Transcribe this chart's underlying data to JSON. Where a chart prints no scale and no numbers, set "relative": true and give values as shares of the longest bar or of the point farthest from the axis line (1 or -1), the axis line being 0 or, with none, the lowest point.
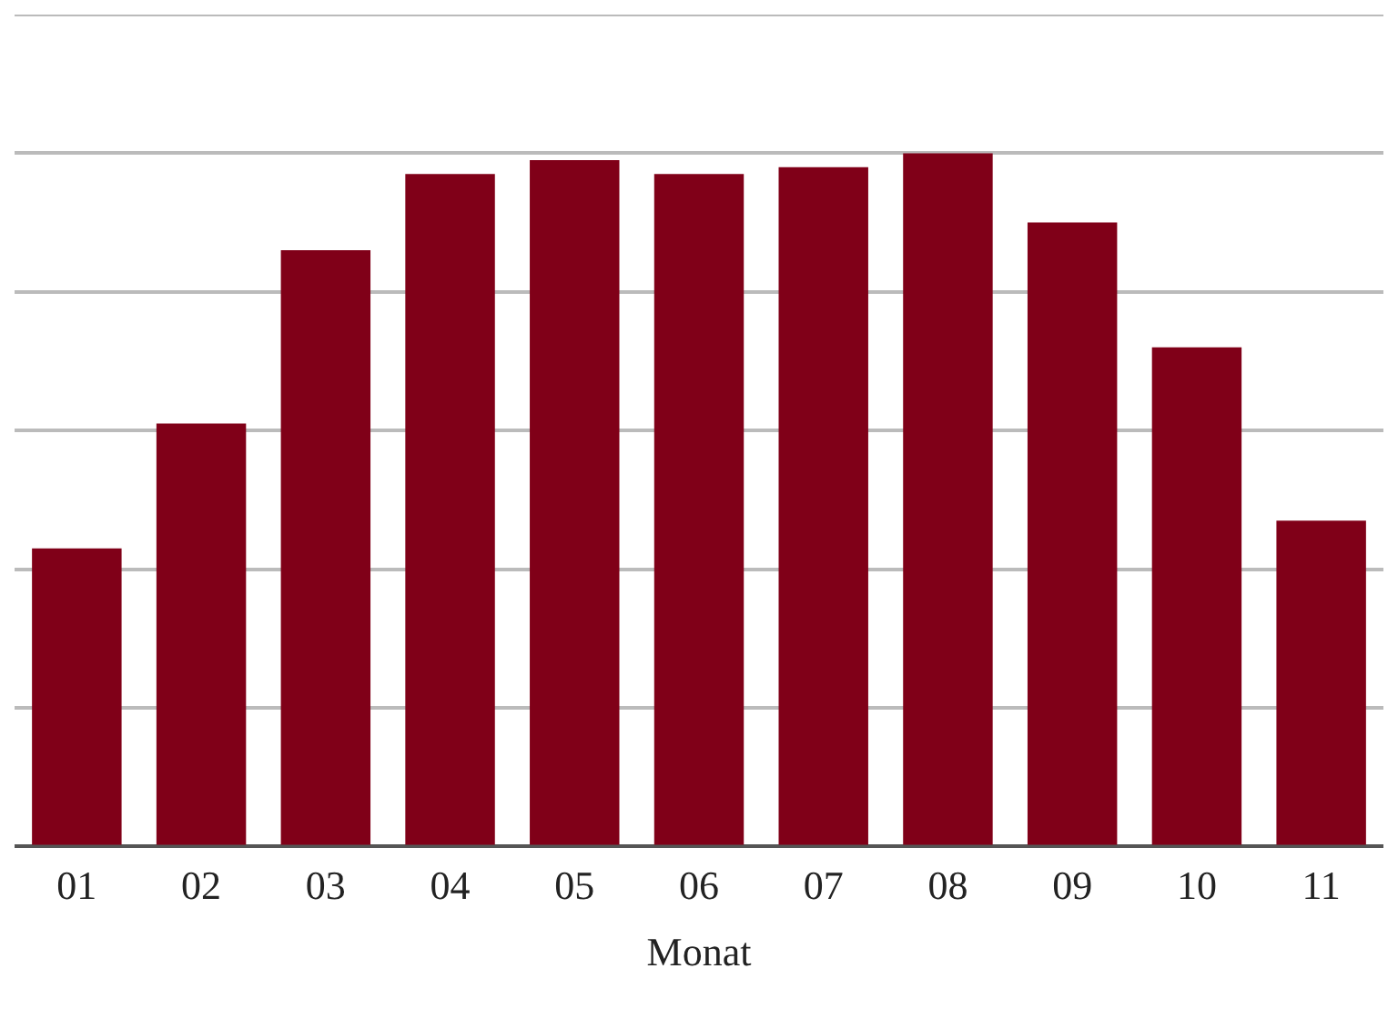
{
  "chart_data": {
    "type": "bar",
    "xlabel": "Monat",
    "relative": true,
    "categories": [
      "01",
      "02",
      "03",
      "04",
      "05",
      "06",
      "07",
      "08",
      "09",
      "10",
      "11"
    ],
    "values": [
      0.43,
      0.61,
      0.86,
      0.97,
      0.99,
      0.97,
      0.98,
      1,
      0.9,
      0.72,
      0.47
    ],
    "color": "#800018",
    "grid": "y",
    "legend": false
  }
}
